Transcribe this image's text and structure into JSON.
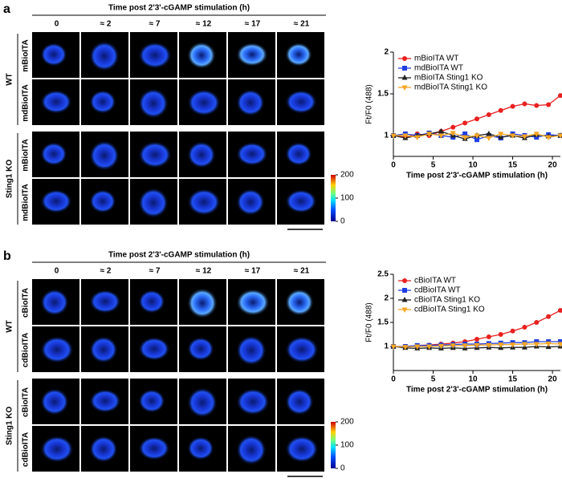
{
  "panels": [
    {
      "label": "a",
      "header": "Time post 2'3'-cGAMP stimulation (h)",
      "columns": [
        "0",
        "≈ 2",
        "≈ 7",
        "≈ 12",
        "≈ 17",
        "≈ 21"
      ],
      "groups": [
        {
          "name": "WT",
          "rows": [
            "mBioITA",
            "mdBioITA"
          ]
        },
        {
          "name": "Sting1 KO",
          "rows": [
            "mBioITA",
            "mdBioITA"
          ]
        }
      ],
      "colorbar": {
        "lim": [
          0,
          200
        ],
        "ticks": [
          0,
          100,
          200
        ]
      }
    },
    {
      "label": "b",
      "header": "Time post 2'3'-cGAMP stimulation (h)",
      "columns": [
        "0",
        "≈ 2",
        "≈ 7",
        "≈ 12",
        "≈ 17",
        "≈ 21"
      ],
      "groups": [
        {
          "name": "WT",
          "rows": [
            "cBioITA",
            "cdBioITA"
          ]
        },
        {
          "name": "Sting1 KO",
          "rows": [
            "cBioITA",
            "cdBioITA"
          ]
        }
      ],
      "colorbar": {
        "lim": [
          0,
          200
        ],
        "ticks": [
          0,
          100,
          200
        ]
      }
    }
  ],
  "chart_data": [
    {
      "type": "line",
      "xlabel": "Time post 2'3'-cGAMP stimulation (h)",
      "ylabel": "Ft/F0 (488)",
      "xlim": [
        0,
        21
      ],
      "ylim": [
        0.75,
        2.0
      ],
      "xticks": [
        0,
        5,
        10,
        15,
        20
      ],
      "yticks": [
        1.0,
        1.5,
        2.0
      ],
      "legend": "upper left",
      "x": [
        0,
        1.5,
        3,
        4.5,
        6,
        7.5,
        9,
        10.5,
        12,
        13.5,
        15,
        16.5,
        18,
        19.5,
        21
      ],
      "series": [
        {
          "name": "mBioITA WT",
          "color": "#e8201f",
          "marker": "circle",
          "values": [
            1.0,
            0.98,
            1.02,
            1.0,
            1.05,
            1.1,
            1.15,
            1.2,
            1.25,
            1.3,
            1.35,
            1.38,
            1.36,
            1.37,
            1.48
          ]
        },
        {
          "name": "mdBioITA WT",
          "color": "#1f3fe0",
          "marker": "square",
          "values": [
            1.0,
            1.02,
            1.0,
            1.03,
            1.0,
            0.98,
            1.02,
            0.95,
            1.0,
            0.97,
            1.02,
            1.0,
            0.98,
            1.01,
            1.0
          ]
        },
        {
          "name": "mBioITA Sting1 KO",
          "color": "#222222",
          "marker": "triangle-up",
          "values": [
            1.0,
            0.97,
            1.0,
            1.02,
            1.05,
            1.0,
            0.96,
            1.0,
            1.02,
            0.98,
            1.0,
            0.97,
            1.01,
            0.99,
            1.0
          ]
        },
        {
          "name": "mdBioITA Sting1 KO",
          "color": "#f5a623",
          "marker": "triangle-down",
          "values": [
            1.0,
            1.0,
            0.98,
            1.02,
            1.0,
            1.03,
            0.98,
            1.0,
            0.97,
            1.02,
            1.0,
            0.99,
            1.02,
            0.98,
            1.0
          ]
        }
      ]
    },
    {
      "type": "line",
      "xlabel": "Time post 2'3'-cGAMP stimulation (h)",
      "ylabel": "Ft/F0 (488)",
      "xlim": [
        0,
        21
      ],
      "ylim": [
        0.5,
        2.5
      ],
      "xticks": [
        0,
        5,
        10,
        15,
        20
      ],
      "yticks": [
        1.0,
        1.5,
        2.0,
        2.5
      ],
      "legend": "upper left",
      "x": [
        0,
        1.5,
        3,
        4.5,
        6,
        7.5,
        9,
        10.5,
        12,
        13.5,
        15,
        16.5,
        18,
        19.5,
        21
      ],
      "series": [
        {
          "name": "cBioITA WT",
          "color": "#e8201f",
          "marker": "circle",
          "values": [
            1.0,
            1.0,
            1.02,
            1.03,
            1.05,
            1.07,
            1.1,
            1.15,
            1.2,
            1.25,
            1.32,
            1.4,
            1.5,
            1.62,
            1.75
          ]
        },
        {
          "name": "cdBioITA WT",
          "color": "#1f3fe0",
          "marker": "square",
          "values": [
            1.0,
            1.0,
            1.02,
            1.02,
            1.03,
            1.04,
            1.05,
            1.05,
            1.06,
            1.07,
            1.08,
            1.08,
            1.1,
            1.1,
            1.1
          ]
        },
        {
          "name": "cBioITA Sting1 KO",
          "color": "#222222",
          "marker": "triangle-up",
          "values": [
            1.0,
            0.97,
            0.96,
            0.97,
            0.96,
            0.97,
            0.96,
            0.97,
            0.98,
            0.97,
            0.98,
            0.98,
            1.0,
            0.99,
            1.0
          ]
        },
        {
          "name": "cdBioITA Sting1 KO",
          "color": "#f5a623",
          "marker": "triangle-down",
          "values": [
            1.0,
            0.99,
            1.0,
            1.0,
            1.01,
            1.02,
            1.02,
            1.03,
            1.03,
            1.04,
            1.04,
            1.05,
            1.05,
            1.06,
            1.05
          ]
        }
      ]
    }
  ]
}
